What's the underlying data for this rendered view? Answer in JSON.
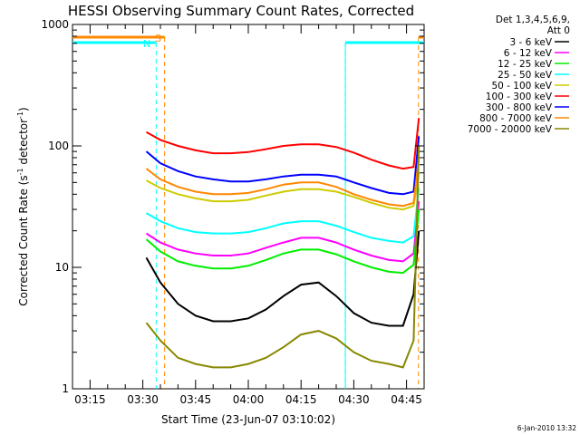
{
  "chart_data": {
    "type": "line",
    "title": "HESSI Observing Summary Count Rates, Corrected",
    "xlabel": "Start Time (23-Jun-07 03:10:02)",
    "ylabel": "Corrected Count Rate (s⁻¹ detector⁻¹)",
    "ylabel_parts": {
      "main": "Corrected Count Rate (s",
      "sup1": "-1",
      "mid": " detector",
      "sup2": "-1",
      "end": ")"
    },
    "y_scale": "log",
    "ylim": [
      1,
      1000
    ],
    "y_ticks": [
      "1",
      "10",
      "100",
      "1000"
    ],
    "xlim_minutes": [
      0,
      100
    ],
    "x_ticks": [
      "03:15",
      "03:30",
      "03:45",
      "04:00",
      "04:15",
      "04:30",
      "04:45"
    ],
    "x": [
      21,
      25,
      30,
      35,
      40,
      45,
      50,
      55,
      60,
      65,
      70,
      75,
      80,
      85,
      90,
      94,
      97,
      98.5
    ],
    "series": [
      {
        "name": "3 - 6 keV",
        "color": "#000000",
        "values": [
          12,
          7.5,
          5,
          4,
          3.6,
          3.6,
          3.8,
          4.5,
          5.8,
          7.2,
          7.5,
          5.8,
          4.2,
          3.5,
          3.3,
          3.3,
          6,
          20
        ]
      },
      {
        "name": "6 - 12 keV",
        "color": "#ff00ff",
        "values": [
          19,
          16,
          14,
          13,
          12.5,
          12.5,
          13,
          14.5,
          16,
          17.5,
          17.5,
          16,
          14,
          12.5,
          11.5,
          11.2,
          13,
          35
        ]
      },
      {
        "name": "12 - 25 keV",
        "color": "#00ee00",
        "values": [
          17,
          13.5,
          11.2,
          10.3,
          9.8,
          9.8,
          10.3,
          11.5,
          13,
          14,
          14,
          12.8,
          11.2,
          10,
          9.2,
          9,
          10.5,
          30
        ]
      },
      {
        "name": "25 - 50 keV",
        "color": "#00ffff",
        "values": [
          28,
          24,
          21,
          19.5,
          19,
          19,
          19.5,
          21,
          23,
          24,
          24,
          22,
          19.5,
          17.5,
          16.5,
          16,
          18,
          45
        ]
      },
      {
        "name": "50 - 100 keV",
        "color": "#cccc00",
        "values": [
          52,
          45,
          40,
          37,
          35,
          35,
          36,
          39,
          42,
          44,
          44,
          42,
          38,
          34,
          31,
          30,
          32,
          60
        ]
      },
      {
        "name": "100 - 300 keV",
        "color": "#ff0000",
        "values": [
          130,
          112,
          100,
          92,
          87,
          87,
          89,
          94,
          100,
          103,
          103,
          98,
          88,
          77,
          69,
          65,
          67,
          170
        ]
      },
      {
        "name": "300 - 800 keV",
        "color": "#0000ff",
        "values": [
          90,
          72,
          62,
          56,
          53,
          51,
          51,
          53,
          56,
          58,
          58,
          56,
          50,
          45,
          41,
          40,
          42,
          120
        ]
      },
      {
        "name": "800 - 7000 keV",
        "color": "#ff8800",
        "values": [
          65,
          53,
          46,
          42,
          40,
          40,
          41,
          44,
          48,
          50,
          50,
          46,
          40,
          36,
          33,
          32,
          34,
          80
        ]
      },
      {
        "name": "7000 - 20000 keV",
        "color": "#888800",
        "values": [
          3.5,
          2.5,
          1.8,
          1.6,
          1.5,
          1.5,
          1.6,
          1.8,
          2.2,
          2.8,
          3,
          2.6,
          2,
          1.7,
          1.6,
          1.5,
          2.5,
          100
        ]
      }
    ],
    "annotations": {
      "saa_label": "S",
      "night_label": "N",
      "saa_color": "#ff8800",
      "night_color": "#00ffff",
      "saa_intervals_minutes": [
        [
          -5,
          26.2
        ],
        [
          98.4,
          101
        ]
      ],
      "night_intervals_minutes": [
        [
          -5,
          23.8
        ],
        [
          77.6,
          100.2
        ]
      ]
    },
    "legend": {
      "position": "right",
      "title_lines": [
        "Det 1,3,4,5,6,9,",
        "Att 0"
      ]
    },
    "footer_date": "6-Jan-2010 13:32",
    "grid": false
  }
}
